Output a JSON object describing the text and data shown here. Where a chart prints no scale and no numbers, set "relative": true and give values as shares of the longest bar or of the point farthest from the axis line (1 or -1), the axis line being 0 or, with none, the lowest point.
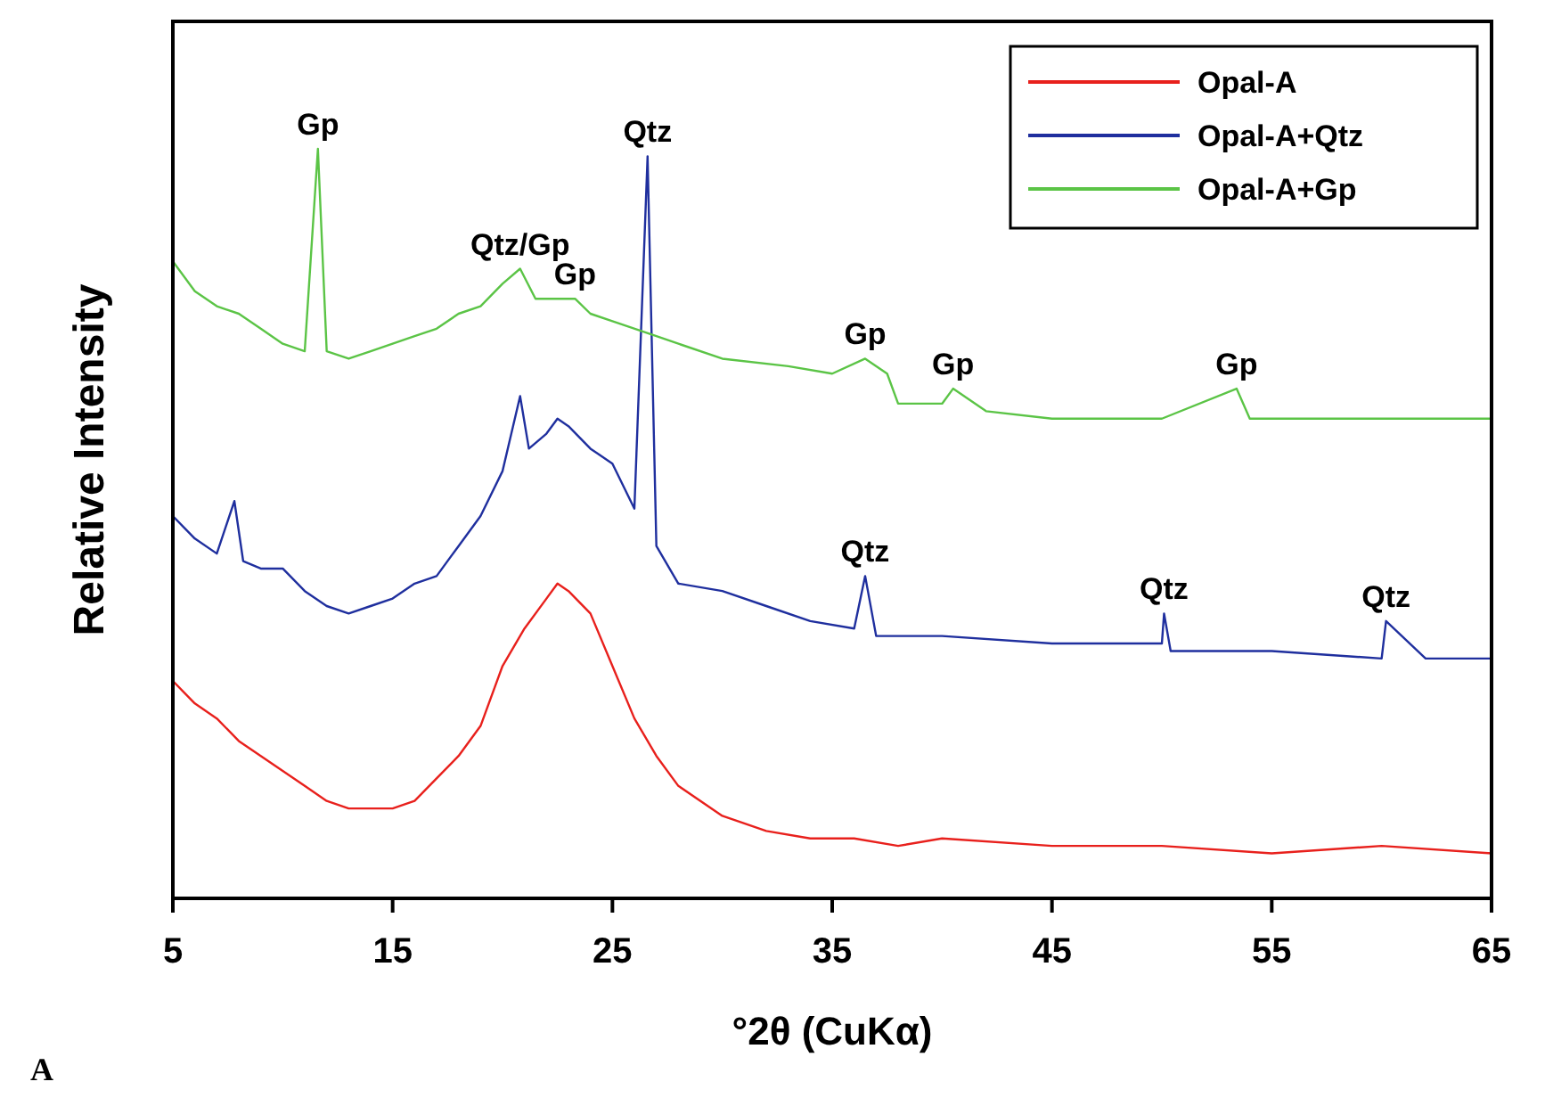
{
  "chart_data": {
    "type": "line",
    "relative": true,
    "xlabel": "°2θ (CuKα)",
    "ylabel": "Relative Intensity",
    "xlim": [
      5,
      65
    ],
    "xticks": [
      5,
      15,
      25,
      35,
      45,
      55,
      65
    ],
    "legend": "top right",
    "line_style": "solid",
    "series": [
      {
        "name": "Opal-A",
        "color": "#e8201c",
        "x": [
          5,
          6,
          7,
          8,
          9,
          10,
          11,
          12,
          13,
          14,
          15,
          16,
          17,
          18,
          19,
          20,
          21,
          22,
          22.5,
          23,
          24,
          25,
          26,
          27,
          28,
          30,
          32,
          34,
          36,
          38,
          40,
          45,
          50,
          55,
          60,
          65
        ],
        "values": [
          0.29,
          0.26,
          0.24,
          0.21,
          0.19,
          0.17,
          0.15,
          0.13,
          0.12,
          0.12,
          0.12,
          0.13,
          0.16,
          0.19,
          0.23,
          0.31,
          0.36,
          0.4,
          0.42,
          0.41,
          0.38,
          0.31,
          0.24,
          0.19,
          0.15,
          0.11,
          0.09,
          0.08,
          0.08,
          0.07,
          0.08,
          0.07,
          0.07,
          0.06,
          0.07,
          0.06
        ]
      },
      {
        "name": "Opal-A+Qtz",
        "color": "#1f2f9e",
        "x": [
          5,
          6,
          7,
          7.8,
          8.2,
          9,
          10,
          11,
          12,
          13,
          14,
          15,
          16,
          17,
          18,
          19,
          20,
          20.8,
          21.2,
          22,
          22.5,
          23,
          24,
          25,
          26,
          26.6,
          27,
          28,
          30,
          32,
          34,
          36,
          36.5,
          37,
          40,
          45,
          50,
          50.1,
          50.4,
          55,
          60,
          60.2,
          62,
          65
        ],
        "values": [
          0.51,
          0.48,
          0.46,
          0.53,
          0.45,
          0.44,
          0.44,
          0.41,
          0.39,
          0.38,
          0.39,
          0.4,
          0.42,
          0.43,
          0.47,
          0.51,
          0.57,
          0.67,
          0.6,
          0.62,
          0.64,
          0.63,
          0.6,
          0.58,
          0.52,
          0.99,
          0.47,
          0.42,
          0.41,
          0.39,
          0.37,
          0.36,
          0.43,
          0.35,
          0.35,
          0.34,
          0.34,
          0.38,
          0.33,
          0.33,
          0.32,
          0.37,
          0.32,
          0.32
        ]
      },
      {
        "name": "Opal-A+Gp",
        "color": "#5bc446",
        "x": [
          5,
          6,
          7,
          8,
          9,
          10,
          11,
          11.6,
          12,
          13,
          14,
          15,
          16,
          17,
          18,
          19,
          20,
          20.8,
          21.5,
          22,
          23.3,
          24,
          25,
          27,
          30,
          33,
          35,
          36.5,
          37.5,
          38,
          40,
          40.5,
          42,
          45,
          50,
          53.4,
          54,
          55,
          60,
          65
        ],
        "values": [
          0.85,
          0.81,
          0.79,
          0.78,
          0.76,
          0.74,
          0.73,
          1.0,
          0.73,
          0.72,
          0.73,
          0.74,
          0.75,
          0.76,
          0.78,
          0.79,
          0.82,
          0.84,
          0.8,
          0.8,
          0.8,
          0.78,
          0.77,
          0.75,
          0.72,
          0.71,
          0.7,
          0.72,
          0.7,
          0.66,
          0.66,
          0.68,
          0.65,
          0.64,
          0.64,
          0.68,
          0.64,
          0.64,
          0.64,
          0.64
        ]
      }
    ],
    "annotations": [
      {
        "text": "Gp",
        "x": 11.6,
        "y": 1.0
      },
      {
        "text": "Qtz/Gp",
        "x": 20.8,
        "y": 0.84
      },
      {
        "text": "Gp",
        "x": 23.3,
        "y": 0.8
      },
      {
        "text": "Qtz",
        "x": 26.6,
        "y": 0.99
      },
      {
        "text": "Gp",
        "x": 36.5,
        "y": 0.72
      },
      {
        "text": "Gp",
        "x": 40.5,
        "y": 0.68
      },
      {
        "text": "Gp",
        "x": 53.4,
        "y": 0.68
      },
      {
        "text": "Qtz",
        "x": 36.5,
        "y": 0.43
      },
      {
        "text": "Qtz",
        "x": 50.1,
        "y": 0.38
      },
      {
        "text": "Qtz",
        "x": 60.2,
        "y": 0.37
      },
      "A"
    ]
  }
}
